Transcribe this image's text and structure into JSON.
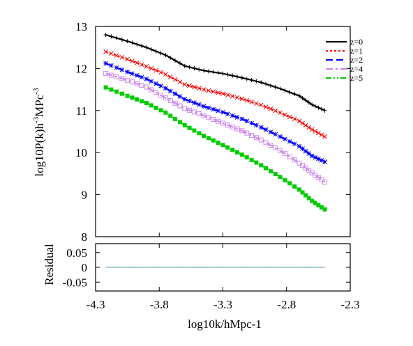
{
  "chart_data": [
    {
      "type": "line",
      "title": "",
      "xlabel": "log10k/hMpc-1",
      "ylabel_main": "log10P(k)h",
      "ylabel_sup1": "-3",
      "ylabel_mid": "MPc",
      "ylabel_sup2": "-3",
      "xlim": [
        -4.3,
        -2.3
      ],
      "ylim": [
        8,
        13
      ],
      "xticks": [
        "-4.3",
        "-3.8",
        "-3.3",
        "-2.8",
        "-2.3"
      ],
      "yticks": [
        "8",
        "9",
        "10",
        "11",
        "12",
        "13"
      ],
      "legend_position": "top-right",
      "grid": false,
      "series": [
        {
          "name": "z=0",
          "color": "#000000",
          "dash": "solid",
          "marker": "plus",
          "x": [
            -4.22,
            -4.05,
            -3.9,
            -3.75,
            -3.6,
            -3.45,
            -3.3,
            -3.15,
            -3.0,
            -2.85,
            -2.7,
            -2.6,
            -2.5
          ],
          "y": [
            12.8,
            12.65,
            12.5,
            12.32,
            12.06,
            11.95,
            11.88,
            11.78,
            11.67,
            11.52,
            11.35,
            11.14,
            11.0
          ]
        },
        {
          "name": "z=1",
          "color": "#ff0000",
          "dash": "dotted",
          "marker": "cross",
          "x": [
            -4.22,
            -4.05,
            -3.9,
            -3.75,
            -3.6,
            -3.45,
            -3.3,
            -3.15,
            -3.0,
            -2.85,
            -2.7,
            -2.6,
            -2.5
          ],
          "y": [
            12.4,
            12.22,
            12.05,
            11.86,
            11.62,
            11.5,
            11.4,
            11.28,
            11.13,
            10.95,
            10.75,
            10.55,
            10.38
          ]
        },
        {
          "name": "z=2",
          "color": "#0000ff",
          "dash": "dashed",
          "marker": "star",
          "x": [
            -4.22,
            -4.05,
            -3.9,
            -3.75,
            -3.6,
            -3.45,
            -3.3,
            -3.15,
            -3.0,
            -2.85,
            -2.7,
            -2.6,
            -2.5
          ],
          "y": [
            12.12,
            11.92,
            11.75,
            11.53,
            11.27,
            11.1,
            10.96,
            10.8,
            10.6,
            10.38,
            10.15,
            9.92,
            9.78
          ]
        },
        {
          "name": "z=4",
          "color": "#cc88ee",
          "dash": "dashdot",
          "marker": "square-open",
          "x": [
            -4.22,
            -4.05,
            -3.9,
            -3.75,
            -3.6,
            -3.45,
            -3.3,
            -3.15,
            -3.0,
            -2.85,
            -2.7,
            -2.6,
            -2.5
          ],
          "y": [
            11.88,
            11.72,
            11.56,
            11.3,
            11.05,
            10.88,
            10.7,
            10.52,
            10.3,
            10.05,
            9.75,
            9.52,
            9.3
          ]
        },
        {
          "name": "z=5",
          "color": "#00cc00",
          "dash": "dashdotdot",
          "marker": "square-filled",
          "x": [
            -4.22,
            -4.05,
            -3.9,
            -3.75,
            -3.6,
            -3.45,
            -3.3,
            -3.15,
            -3.0,
            -2.85,
            -2.7,
            -2.6,
            -2.5
          ],
          "y": [
            11.55,
            11.35,
            11.18,
            10.95,
            10.65,
            10.4,
            10.18,
            9.95,
            9.7,
            9.42,
            9.12,
            8.85,
            8.65
          ]
        }
      ]
    },
    {
      "type": "line",
      "title": "",
      "ylabel": "Residual",
      "xlim": [
        -4.3,
        -2.3
      ],
      "ylim": [
        -0.08,
        0.08
      ],
      "yticks": [
        "0.05",
        "0",
        "-0.05"
      ],
      "grid": false,
      "series": [
        {
          "color": "#00aaaa",
          "x": [
            -4.22,
            -2.5
          ],
          "y": [
            0,
            0
          ]
        },
        {
          "color": "#888888",
          "x": [
            -4.22,
            -2.5
          ],
          "y": [
            0,
            0
          ]
        }
      ]
    }
  ]
}
